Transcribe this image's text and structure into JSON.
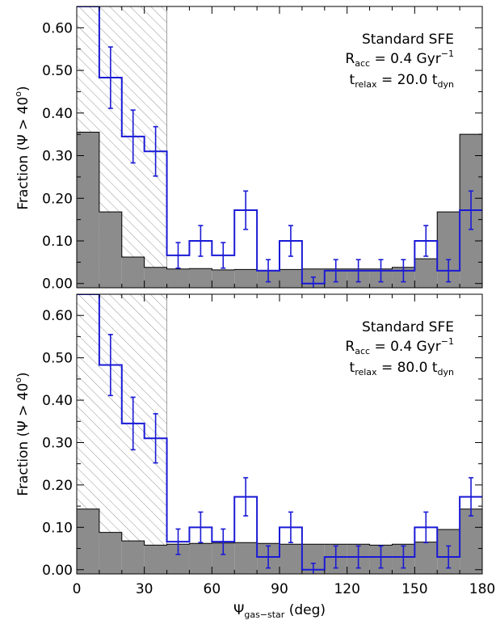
{
  "chart_data": [
    {
      "type": "histogram",
      "annotation": {
        "line1": "Standard SFE",
        "line2": {
          "main": "R",
          "sub": "acc",
          "rest": " = 0.4 Gyr",
          "sup": "−1"
        },
        "line3": {
          "main": "t",
          "sub": "relax",
          "rest": " = 20.0 t",
          "sub2": "dyn"
        }
      },
      "ylabel": {
        "prefix": "Fraction (Ψ > 40",
        "sup": "o",
        "suffix": ")"
      },
      "xlim": [
        0,
        180
      ],
      "ylim": [
        -0.01,
        0.65
      ],
      "yticks": [
        "0.00",
        "0.10",
        "0.20",
        "0.30",
        "0.40",
        "0.50",
        "0.60"
      ],
      "hatched_region": [
        0,
        40
      ],
      "colors": {
        "gray_fill": "#8c8c8c",
        "blue": "#1a1ad6"
      },
      "bin_edges": [
        0,
        10,
        20,
        30,
        40,
        50,
        60,
        70,
        80,
        90,
        100,
        110,
        120,
        130,
        140,
        150,
        160,
        170,
        180
      ],
      "gray_values": [
        0.355,
        0.168,
        0.062,
        0.038,
        0.034,
        0.035,
        0.032,
        0.033,
        0.031,
        0.033,
        0.034,
        0.034,
        0.034,
        0.034,
        0.038,
        0.058,
        0.168,
        0.35
      ],
      "blue_values": [
        0.65,
        0.483,
        0.345,
        0.31,
        0.066,
        0.1,
        0.066,
        0.172,
        0.03,
        0.1,
        0.0,
        0.03,
        0.03,
        0.03,
        0.03,
        0.1,
        0.03,
        0.172
      ],
      "blue_errors": [
        0.0,
        0.072,
        0.062,
        0.058,
        0.03,
        0.036,
        0.03,
        0.045,
        0.026,
        0.036,
        0.015,
        0.026,
        0.026,
        0.026,
        0.026,
        0.036,
        0.026,
        0.045
      ]
    },
    {
      "type": "histogram",
      "annotation": {
        "line1": "Standard SFE",
        "line2": {
          "main": "R",
          "sub": "acc",
          "rest": " = 0.4 Gyr",
          "sup": "−1"
        },
        "line3": {
          "main": "t",
          "sub": "relax",
          "rest": " = 80.0 t",
          "sub2": "dyn"
        }
      },
      "ylabel": {
        "prefix": "Fraction (Ψ > 40",
        "sup": "o",
        "suffix": ")"
      },
      "xlim": [
        0,
        180
      ],
      "ylim": [
        -0.01,
        0.65
      ],
      "yticks": [
        "0.00",
        "0.10",
        "0.20",
        "0.30",
        "0.40",
        "0.50",
        "0.60"
      ],
      "xticks": [
        "0",
        "30",
        "60",
        "90",
        "120",
        "150",
        "180"
      ],
      "xlabel": {
        "main": "Ψ",
        "sub": "gas−star",
        "rest": " (deg)"
      },
      "hatched_region": [
        0,
        40
      ],
      "colors": {
        "gray_fill": "#8c8c8c",
        "blue": "#1a1ad6"
      },
      "bin_edges": [
        0,
        10,
        20,
        30,
        40,
        50,
        60,
        70,
        80,
        90,
        100,
        110,
        120,
        130,
        140,
        150,
        160,
        170,
        180
      ],
      "gray_values": [
        0.143,
        0.088,
        0.068,
        0.058,
        0.06,
        0.062,
        0.063,
        0.064,
        0.062,
        0.06,
        0.06,
        0.06,
        0.06,
        0.058,
        0.06,
        0.065,
        0.095,
        0.143
      ],
      "blue_values": [
        0.65,
        0.483,
        0.345,
        0.31,
        0.066,
        0.1,
        0.066,
        0.172,
        0.03,
        0.1,
        0.0,
        0.03,
        0.03,
        0.03,
        0.03,
        0.1,
        0.03,
        0.172
      ],
      "blue_errors": [
        0.0,
        0.072,
        0.062,
        0.058,
        0.03,
        0.036,
        0.03,
        0.045,
        0.026,
        0.036,
        0.015,
        0.026,
        0.026,
        0.026,
        0.026,
        0.036,
        0.026,
        0.045
      ]
    }
  ]
}
